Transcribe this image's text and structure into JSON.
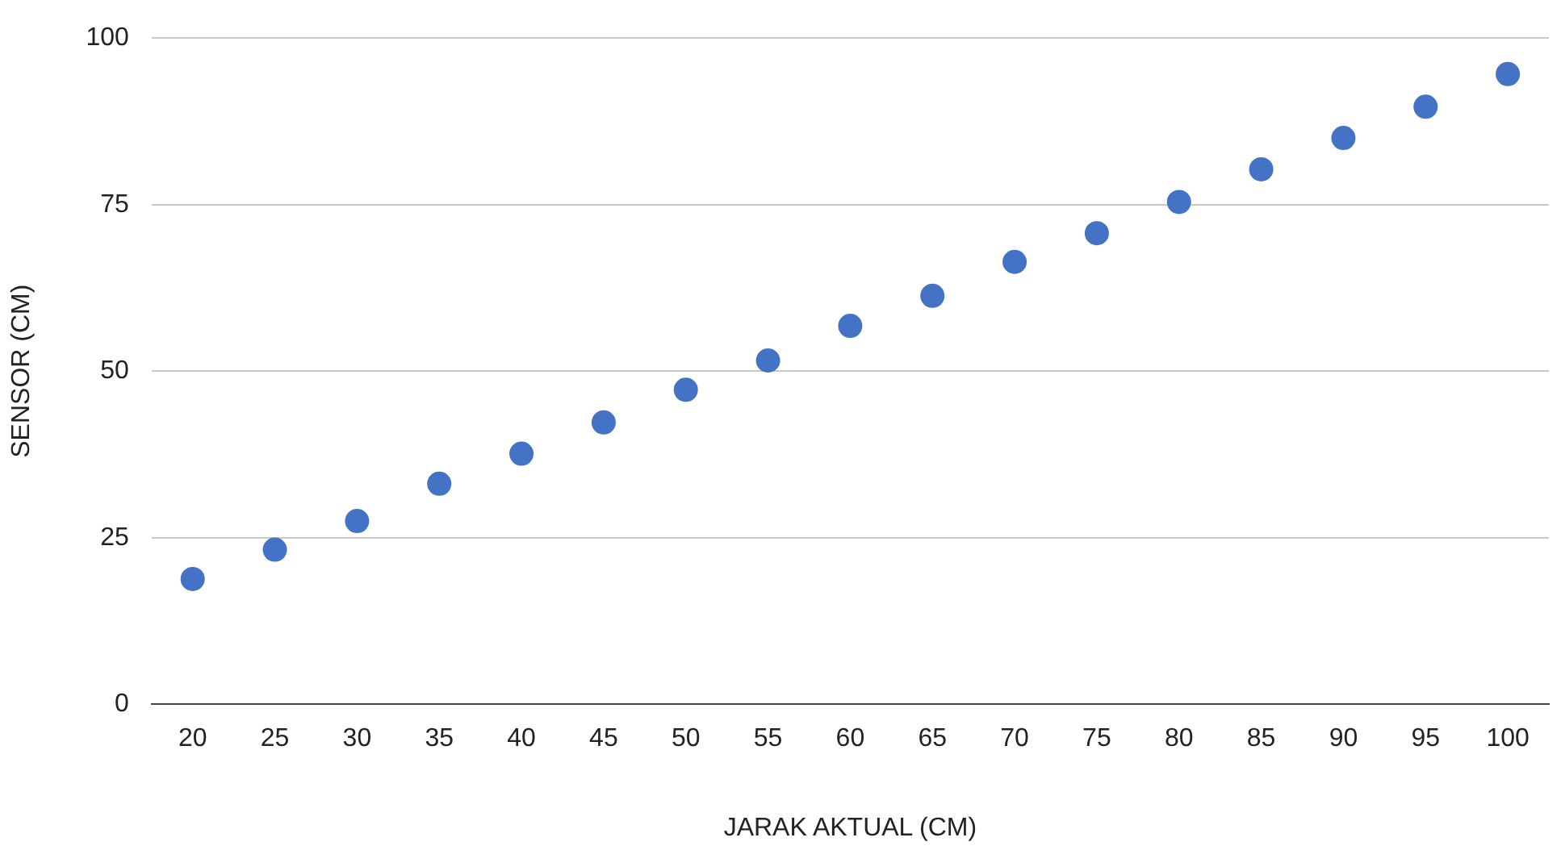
{
  "chart_data": {
    "type": "scatter",
    "xlabel": "JARAK AKTUAL (CM)",
    "ylabel": "SENSOR (CM)",
    "categories": [
      "20",
      "25",
      "30",
      "35",
      "40",
      "45",
      "50",
      "55",
      "60",
      "65",
      "70",
      "75",
      "80",
      "85",
      "90",
      "95",
      "100"
    ],
    "series": [
      {
        "color": "#4472c4",
        "values": [
          18.8,
          23.2,
          27.5,
          33.1,
          37.6,
          42.3,
          47.2,
          51.6,
          56.8,
          61.3,
          66.4,
          70.7,
          75.4,
          80.3,
          85.0,
          89.7,
          94.6
        ]
      }
    ],
    "ylim": [
      0,
      100
    ],
    "yticks": [
      0,
      25,
      50,
      75,
      100
    ],
    "grid": "y",
    "legend": false,
    "marker": "circle"
  }
}
